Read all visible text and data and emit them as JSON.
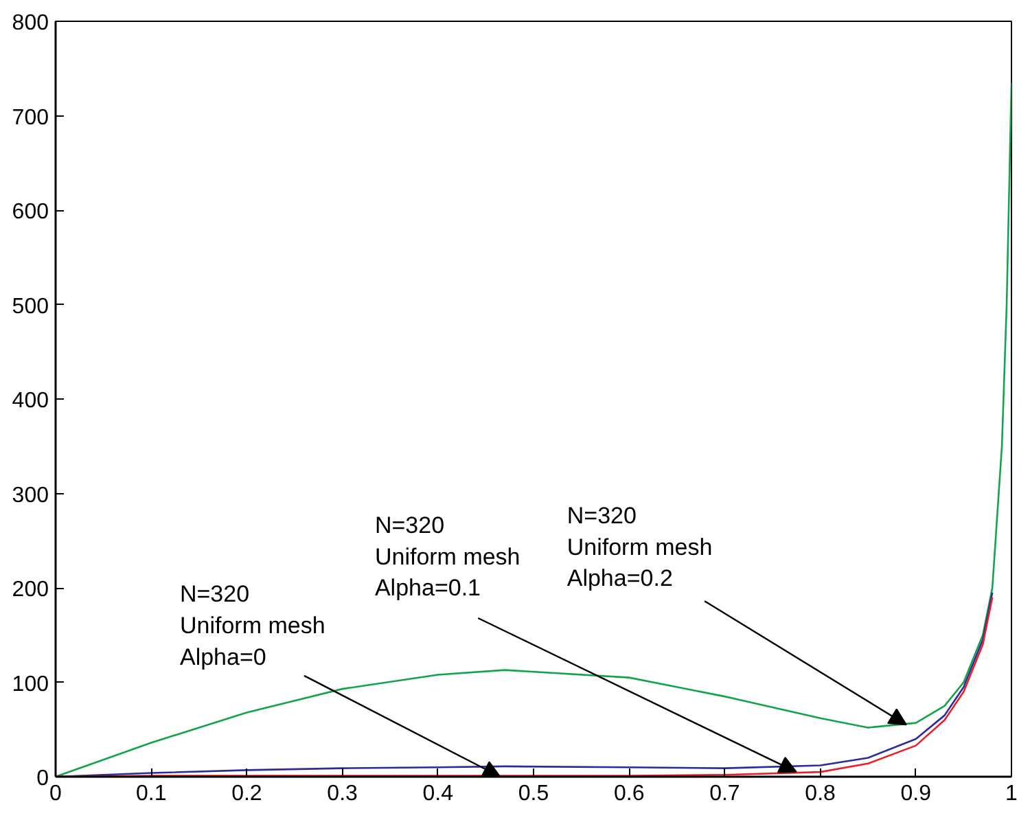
{
  "chart_data": {
    "type": "line",
    "x": [
      0,
      0.1,
      0.2,
      0.3,
      0.4,
      0.47,
      0.6,
      0.7,
      0.8,
      0.85,
      0.9,
      0.93,
      0.95,
      0.97,
      0.98,
      0.99,
      0.995,
      1.0
    ],
    "series": [
      {
        "color": "#12a44a",
        "values": [
          0,
          36,
          68,
          93,
          108,
          113,
          105,
          85,
          62,
          52,
          57,
          75,
          100,
          150,
          200,
          350,
          500,
          735
        ]
      },
      {
        "color": "#2b2b9a",
        "values": [
          0,
          4,
          7,
          9,
          10,
          11,
          10,
          9,
          12,
          20,
          40,
          65,
          95,
          145,
          195,
          null,
          null,
          null
        ]
      },
      {
        "color": "#e8202a",
        "values": [
          0,
          1,
          1,
          1,
          1,
          1,
          1,
          2,
          5,
          14,
          33,
          60,
          90,
          140,
          190,
          null,
          null,
          null
        ]
      }
    ],
    "xlim": [
      0,
      1
    ],
    "ylim": [
      0,
      800
    ],
    "xticks": [
      0,
      0.1,
      0.2,
      0.3,
      0.4,
      0.5,
      0.6,
      0.7,
      0.8,
      0.9,
      1
    ],
    "yticks": [
      0,
      100,
      200,
      300,
      400,
      500,
      600,
      700,
      800
    ],
    "annotations": [
      {
        "text": "N=320\nUniform  mesh\nAlpha=0",
        "x": 0.465,
        "y": 0
      },
      {
        "text": "N=320\nUniform mesh\nAlpha=0.1",
        "x": 0.775,
        "y": 5
      },
      {
        "text": "N=320\nUniform mesh\n Alpha=0.2",
        "x": 0.89,
        "y": 55
      }
    ]
  }
}
